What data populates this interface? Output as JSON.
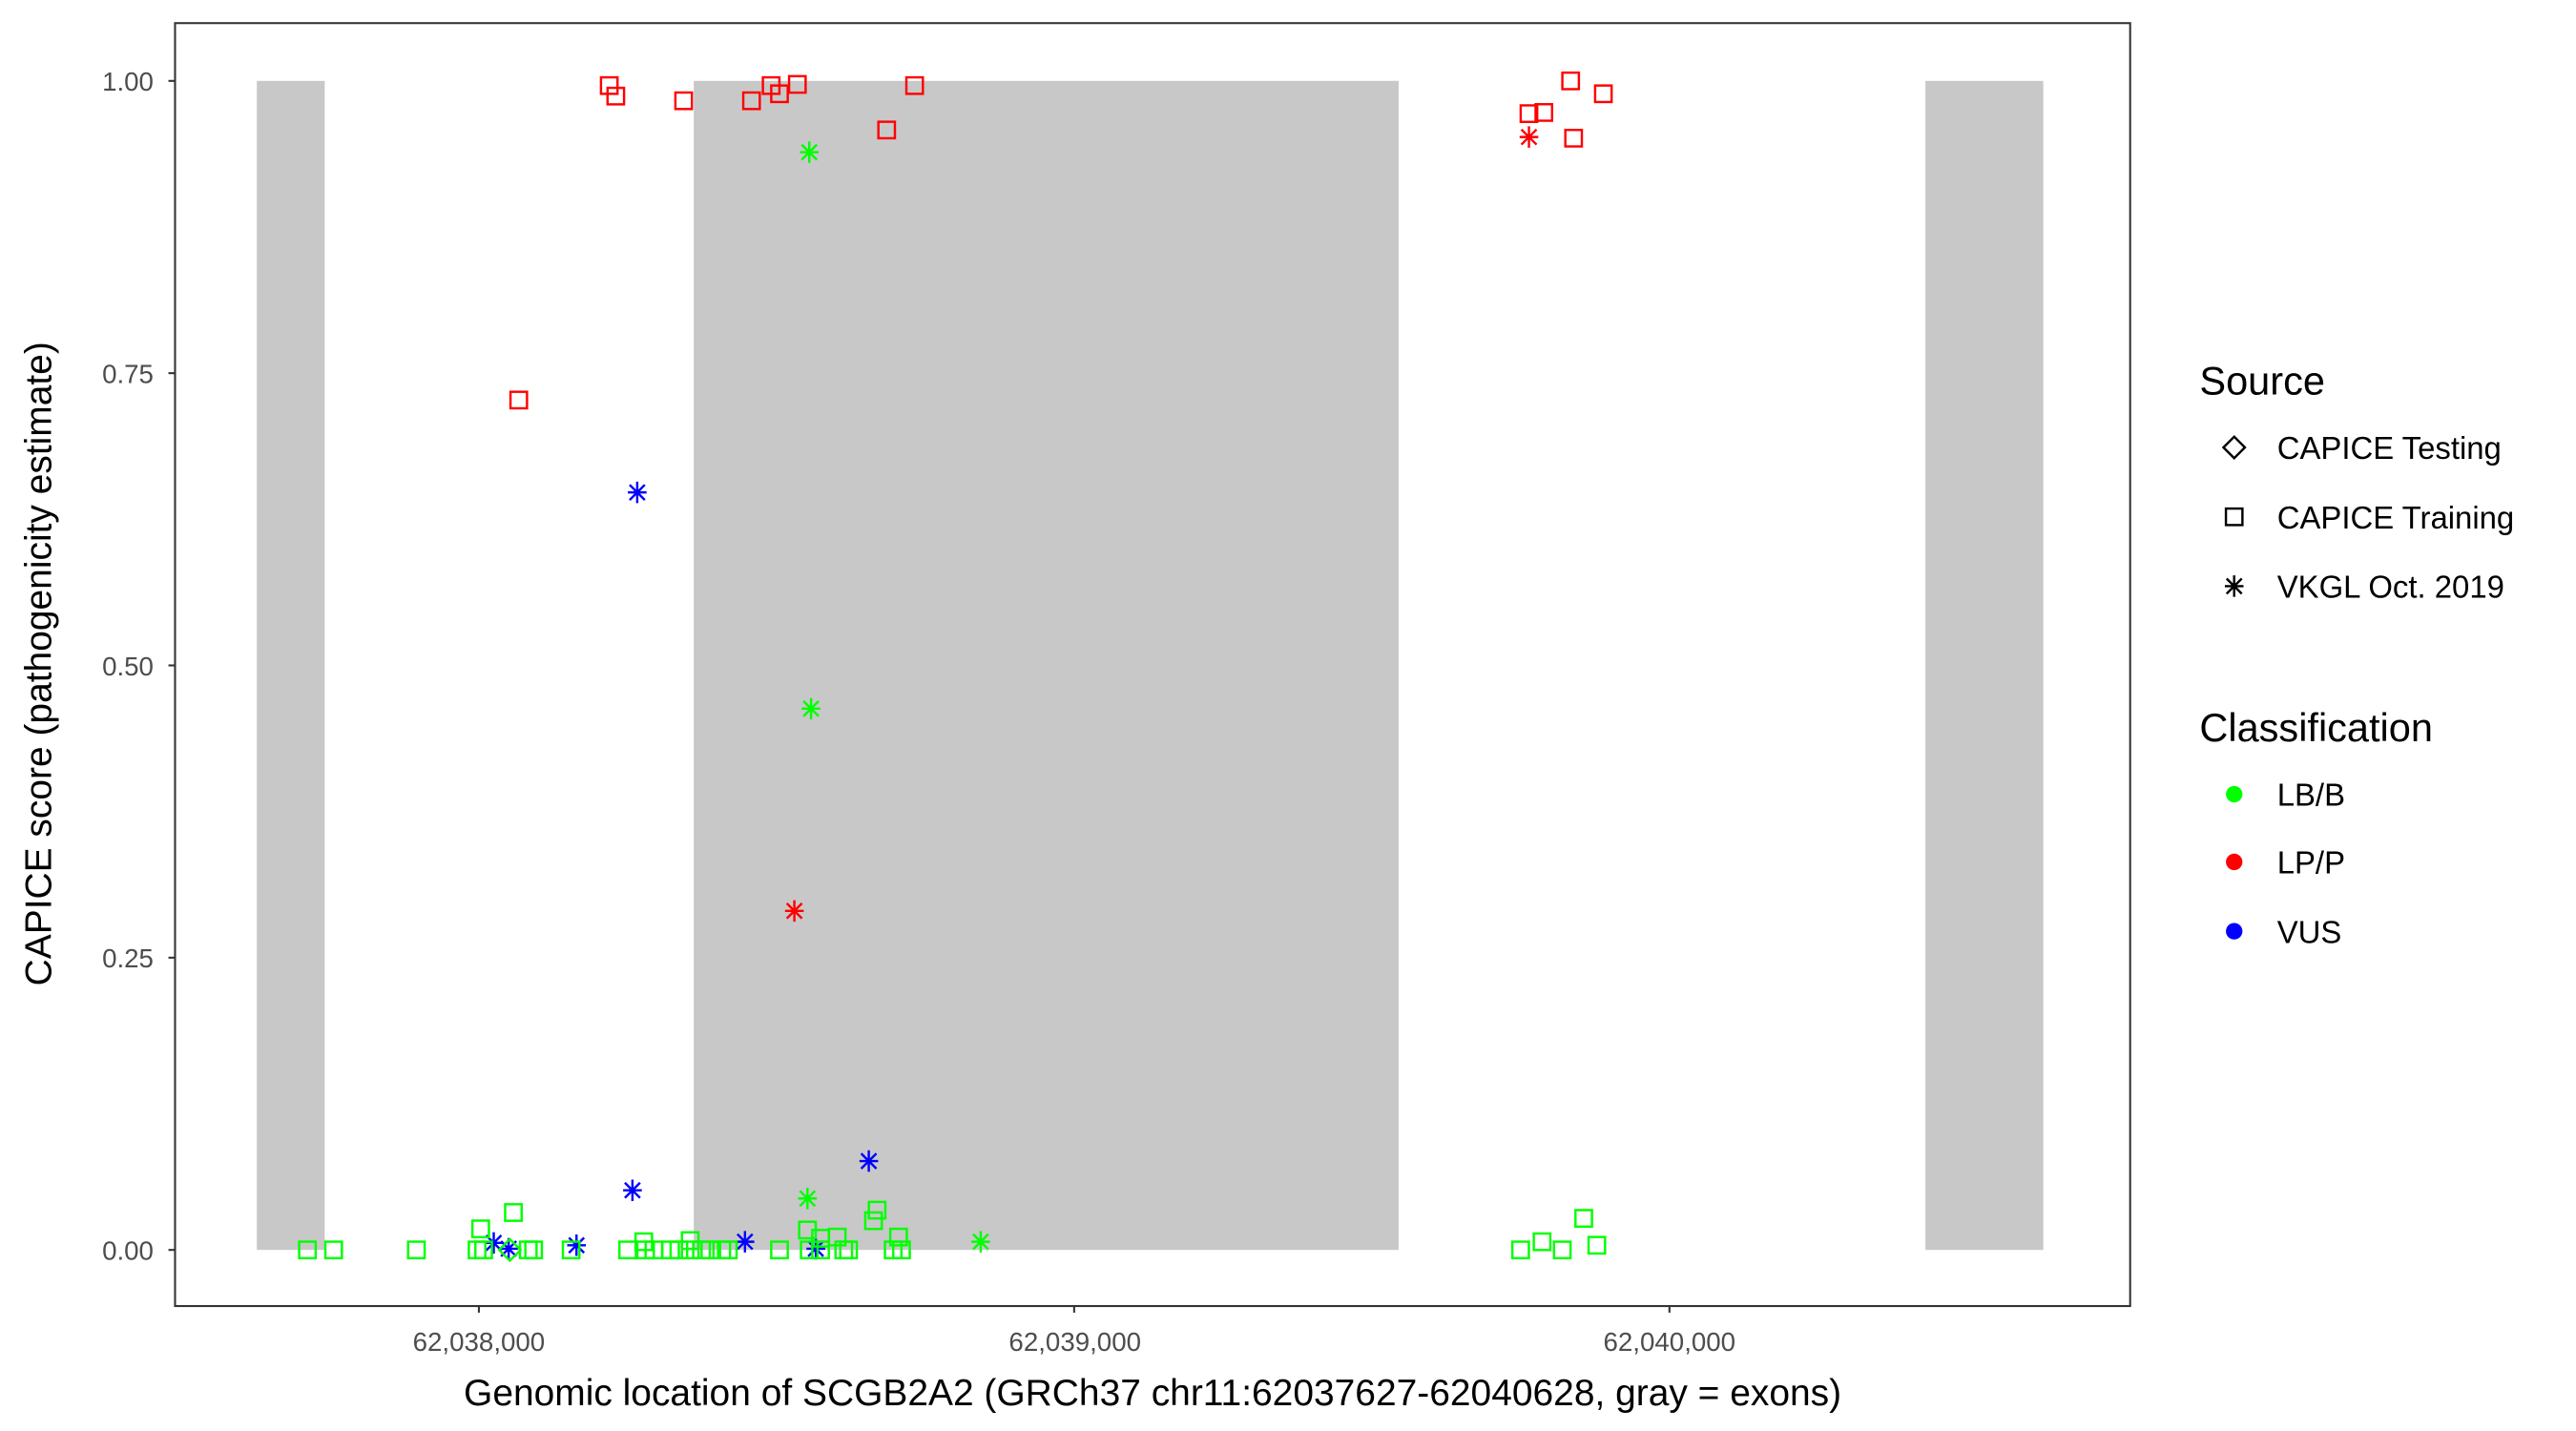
{
  "chart_data": {
    "type": "scatter",
    "xlabel": "Genomic location of SCGB2A2 (GRCh37 chr11:62037627-62040628, gray = exons)",
    "ylabel": "CAPICE score (pathogenicity estimate)",
    "xlim": [
      62037480,
      62040760
    ],
    "ylim": [
      -0.048,
      1.048
    ],
    "x_ticks": [
      62038000,
      62039000,
      62040000
    ],
    "x_tick_labels": [
      "62,038,000",
      "62,039,000",
      "62,040,000"
    ],
    "y_ticks": [
      0,
      0.25,
      0.5,
      0.75,
      1.0
    ],
    "y_tick_labels": [
      "0.00",
      "0.25",
      "0.50",
      "0.75",
      "1.00"
    ],
    "grid": false,
    "exon_color": "#C8C8C8",
    "exons": [
      [
        62037627,
        62037741
      ],
      [
        62038361,
        62039545
      ],
      [
        62040430,
        62040628
      ]
    ],
    "legend": {
      "placement": "right",
      "source_title": "Source",
      "sources": [
        {
          "label": "CAPICE Testing",
          "shape": "diamond"
        },
        {
          "label": "CAPICE Training",
          "shape": "square"
        },
        {
          "label": "VKGL Oct. 2019",
          "shape": "asterisk"
        }
      ],
      "class_title": "Classification",
      "classes": [
        {
          "label": "LB/B",
          "color": "#00FF00"
        },
        {
          "label": "LP/P",
          "color": "#FF0000"
        },
        {
          "label": "VUS",
          "color": "#0000FF"
        }
      ]
    },
    "series": [
      {
        "source": "CAPICE Training",
        "classification": "LP/P",
        "points": [
          [
            62038219,
            0.996
          ],
          [
            62038230,
            0.987
          ],
          [
            62038344,
            0.983
          ],
          [
            62038458,
            0.983
          ],
          [
            62038491,
            0.996
          ],
          [
            62038505,
            0.989
          ],
          [
            62038535,
            0.997
          ],
          [
            62038732,
            0.996
          ],
          [
            62038685,
            0.958
          ],
          [
            62038067,
            0.727
          ],
          [
            62039764,
            0.972
          ],
          [
            62039789,
            0.973
          ],
          [
            62039834,
            1.0
          ],
          [
            62039839,
            0.951
          ],
          [
            62039889,
            0.989
          ]
        ]
      },
      {
        "source": "VKGL Oct. 2019",
        "classification": "LP/P",
        "points": [
          [
            62039764,
            0.952
          ],
          [
            62038530,
            0.29
          ]
        ]
      },
      {
        "source": "VKGL Oct. 2019",
        "classification": "LB/B",
        "points": [
          [
            62038555,
            0.939
          ],
          [
            62038558,
            0.463
          ],
          [
            62038552,
            0.044
          ],
          [
            62038843,
            0.007
          ]
        ]
      },
      {
        "source": "VKGL Oct. 2019",
        "classification": "VUS",
        "points": [
          [
            62038266,
            0.648
          ],
          [
            62038258,
            0.051
          ],
          [
            62038655,
            0.076
          ],
          [
            62038025,
            0.006
          ],
          [
            62038050,
            0.001
          ],
          [
            62038164,
            0.004
          ],
          [
            62038447,
            0.007
          ],
          [
            62038566,
            0.001
          ]
        ]
      },
      {
        "source": "CAPICE Testing",
        "classification": "LB/B",
        "points": [
          [
            62038052,
            0.0
          ]
        ]
      },
      {
        "source": "CAPICE Training",
        "classification": "LB/B",
        "points": [
          [
            62037712,
            0
          ],
          [
            62037756,
            0
          ],
          [
            62037895,
            0
          ],
          [
            62037997,
            0
          ],
          [
            62038008,
            0
          ],
          [
            62038003,
            0.018
          ],
          [
            62038058,
            0.032
          ],
          [
            62038083,
            0
          ],
          [
            62038092,
            0
          ],
          [
            62038155,
            0
          ],
          [
            62038250,
            0
          ],
          [
            62038277,
            0.007
          ],
          [
            62038280,
            0
          ],
          [
            62038294,
            0
          ],
          [
            62038322,
            0
          ],
          [
            62038336,
            0
          ],
          [
            62038355,
            0.008
          ],
          [
            62038355,
            0
          ],
          [
            62038374,
            0
          ],
          [
            62038388,
            0
          ],
          [
            62038408,
            0
          ],
          [
            62038419,
            0
          ],
          [
            62038505,
            0
          ],
          [
            62038552,
            0.017
          ],
          [
            62038555,
            0
          ],
          [
            62038574,
            0.01
          ],
          [
            62038574,
            0
          ],
          [
            62038602,
            0.011
          ],
          [
            62038613,
            0
          ],
          [
            62038621,
            0
          ],
          [
            62038663,
            0.025
          ],
          [
            62038669,
            0.034
          ],
          [
            62038696,
            0
          ],
          [
            62038705,
            0.011
          ],
          [
            62038710,
            0
          ],
          [
            62039750,
            0
          ],
          [
            62039786,
            0.007
          ],
          [
            62039820,
            0
          ],
          [
            62039856,
            0.027
          ],
          [
            62039878,
            0.004
          ]
        ]
      }
    ]
  }
}
